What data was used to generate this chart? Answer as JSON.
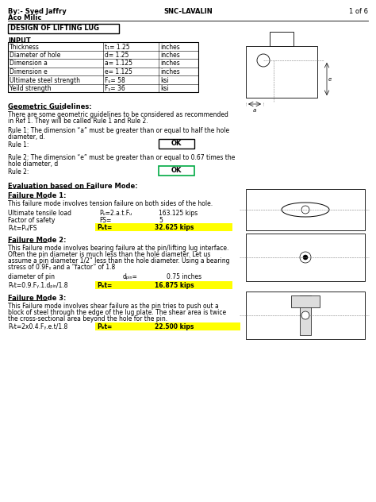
{
  "header_left1": "By:- Syed Jaffry",
  "header_left2": "Aco Milic",
  "header_center": "SNC-LAVALIN",
  "header_right": "1 of 6",
  "title_box": "DESIGN OF LIFTING LUG",
  "section_input": "INPUT",
  "input_rows": [
    [
      "Thickness",
      "t₁= 1.25",
      "inches"
    ],
    [
      "Diameter of hole",
      "d= 1.25",
      "inches"
    ],
    [
      "Dimension a",
      "a= 1.125",
      "inches"
    ],
    [
      "Dimension e",
      "e= 1.125",
      "inches"
    ],
    [
      "Ultimate steel strength",
      "Fᵤ= 58",
      "ksi"
    ],
    [
      "Yeild strength",
      "Fᵧ= 36",
      "ksi"
    ]
  ],
  "input_highlight_rows": [
    0,
    1,
    2,
    3
  ],
  "geo_title": "Geometric Guidelines:",
  "geo_body1": "There are some geometric guidelines to be considered as recommended",
  "geo_body2": "in Ref 1. They will be called Rule 1 and Rule 2.",
  "rule1_text1": "Rule 1: The dimension “a” must be greater than or equal to half the hole",
  "rule1_text2": "diameter, d.",
  "rule1_label": "Rule 1:",
  "rule1_result": "OK",
  "rule2_text1": "Rule 2: The dimension “e” must be greater than or equal to 0.67 times the",
  "rule2_text2": "hole diameter, d",
  "rule2_label": "Rule 2:",
  "rule2_result": "OK",
  "eval_title": "Evaluation based on Failure Mode:",
  "fm1_title": "Failure Mode 1:",
  "fm1_body": "This failure mode involves tension failure on both sides of the hole.",
  "fm1_row1_label": "Ultimate tensile load",
  "fm1_row1_formula": "Pᵤ=2.a.t.Fᵤ",
  "fm1_row1_value": "163.125 kips",
  "fm1_row2_label": "Factor of safety",
  "fm1_row2_formula": "FS=",
  "fm1_row2_value": "5",
  "fm1_row3_label": "Pₑt=Pᵤ/FS",
  "fm1_row3_formula": "Pₑt=",
  "fm1_row3_value": "32.625 kips",
  "fm2_title": "Failure Mode 2:",
  "fm2_body1": "This Failure mode involves bearing failure at the pin/lifting lug interface.",
  "fm2_body2": "Often the pin diameter is much less than the hole diameter. Let us",
  "fm2_body3": "assume a pin diameter 1/2” less than the hole diameter. Using a bearing",
  "fm2_body4": "stress of 0.9Fᵧ and a “factor” of 1.8",
  "fm2_row1_label": "diameter of pin",
  "fm2_row1_formula": "dₚᵢₙ=",
  "fm2_row1_value": "0.75 inches",
  "fm2_row2_formula": "Pₑt=0.9.Fᵧ.1.dₚᵢₙ/1.8",
  "fm2_row2_result_label": "Pₑt=",
  "fm2_row2_result_value": "16.875 kips",
  "fm3_title": "Failure Mode 3:",
  "fm3_body1": "This Failure mode involves shear failure as the pin tries to push out a",
  "fm3_body2": "block of steel through the edge of the lug plate. The shear area is twice",
  "fm3_body3": "the cross-sectional area beyond the hole for the pin.",
  "fm3_row_formula": "Pₑt=2x0.4.Fᵧ.e.t/1.8",
  "fm3_row_result_label": "Pₑt=",
  "fm3_row_result_value": "22.500 kips",
  "yellow": "#FFFF00",
  "light_blue": "#C6EFFF",
  "ok_green_border": "#00AA44",
  "bg": "#FFFFFF"
}
